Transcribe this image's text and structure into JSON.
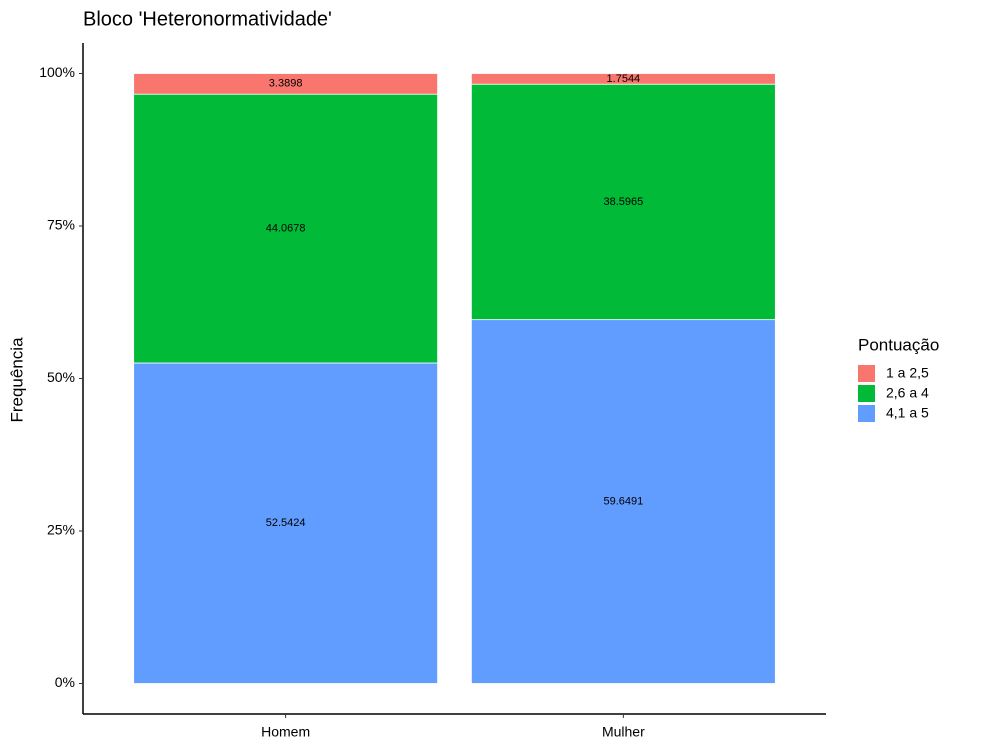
{
  "chart_data": {
    "type": "stacked_bar",
    "title": "Bloco 'Heteronormatividade'",
    "y_label": "Frequência",
    "legend_title": "Pontuação",
    "categories": [
      "Homem",
      "Mulher"
    ],
    "series": [
      {
        "name": "1 a 2,5",
        "color": "#f8766d",
        "values": [
          3.3898,
          1.7544
        ]
      },
      {
        "name": "2,6 a 4",
        "color": "#00ba38",
        "values": [
          44.0678,
          38.5965
        ]
      },
      {
        "name": "4,1 a 5",
        "color": "#619cff",
        "values": [
          52.5424,
          59.6491
        ]
      }
    ],
    "ylim": [
      -5,
      105
    ],
    "yticks": [
      {
        "value": 0,
        "label": "0%"
      },
      {
        "value": 25,
        "label": "25%"
      },
      {
        "value": 50,
        "label": "50%"
      },
      {
        "value": 75,
        "label": "75%"
      },
      {
        "value": 100,
        "label": "100%"
      }
    ],
    "legend": "right"
  }
}
